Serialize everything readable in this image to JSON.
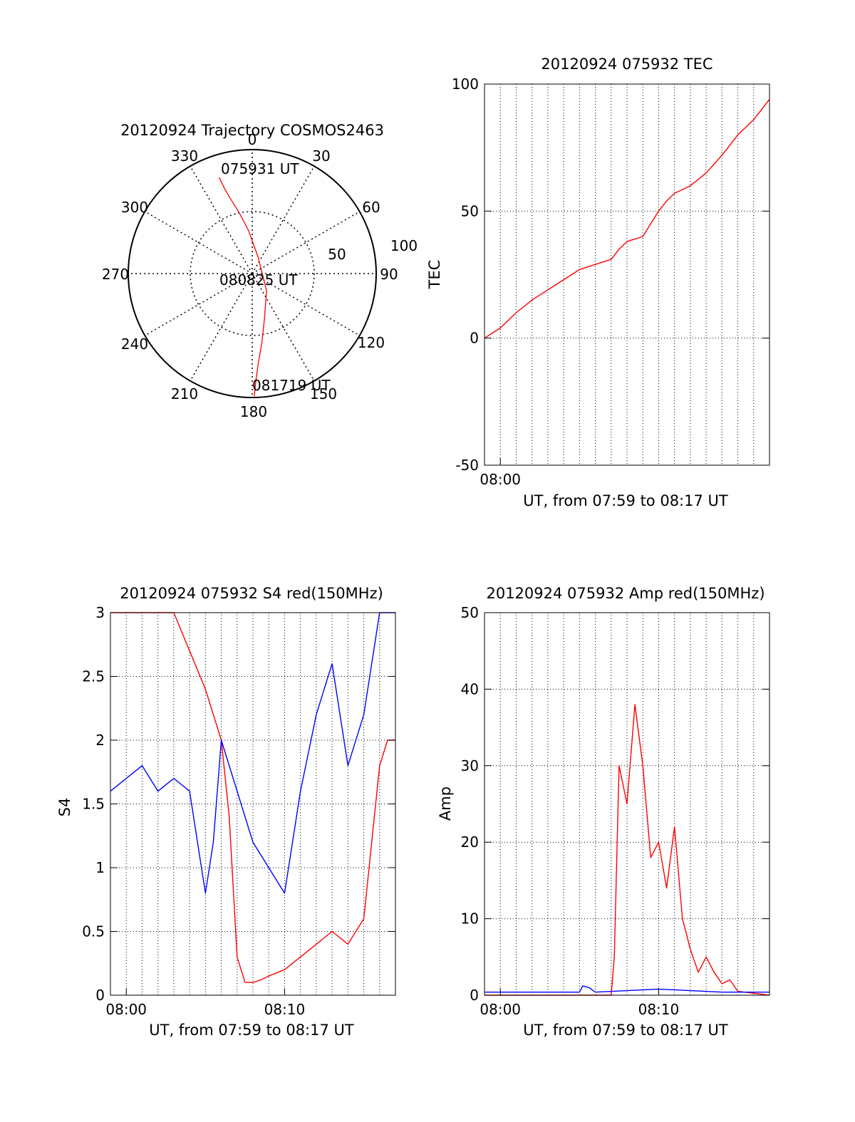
{
  "colors": {
    "red": "#ff0000",
    "blue": "#0000ff",
    "axis": "#000000",
    "grid": "#000000"
  },
  "chart_data": [
    {
      "type": "polar",
      "title": "20120924 Trajectory COSMOS2463",
      "angle_ticks": [
        "0",
        "30",
        "60",
        "90",
        "120",
        "150",
        "180",
        "210",
        "240",
        "270",
        "300",
        "330"
      ],
      "radial_ticks": [
        "50",
        "100"
      ],
      "annotations": [
        "075931 UT",
        "080825 UT",
        "081719 UT"
      ],
      "series": [
        {
          "color": "red",
          "azimuth_deg": [
            341,
            342,
            344,
            348,
            355,
            20,
            140,
            165,
            172,
            176,
            178,
            179
          ],
          "zenith_deg": [
            82,
            72,
            62,
            50,
            35,
            14,
            18,
            38,
            56,
            72,
            86,
            99
          ]
        }
      ]
    },
    {
      "type": "line",
      "title": "20120924 075932 TEC",
      "xlabel": "UT, from 07:59 to 08:17 UT",
      "ylabel": "TEC",
      "x_tick_labels": [
        "08:00"
      ],
      "y_tick_labels": [
        "-50",
        "0",
        "50",
        "100"
      ],
      "ylim": [
        -50,
        100
      ],
      "xlim_min": [
        0,
        18
      ],
      "grid": true,
      "series": [
        {
          "color": "red",
          "x_min": [
            0,
            0.5,
            1,
            2,
            3,
            4,
            5,
            6,
            7,
            8,
            8.5,
            9,
            10,
            11,
            11.5,
            12,
            13,
            14,
            15,
            16,
            17,
            18
          ],
          "y": [
            0,
            2,
            4,
            10,
            15,
            19,
            23,
            27,
            29,
            31,
            35,
            38,
            40,
            50,
            54,
            57,
            60,
            65,
            72,
            80,
            86,
            94
          ]
        }
      ]
    },
    {
      "type": "line",
      "title": "20120924 075932 S4 red(150MHz)",
      "xlabel": "UT, from 07:59 to 08:17 UT",
      "ylabel": "S4",
      "x_tick_labels": [
        "08:00",
        "08:10"
      ],
      "y_tick_labels": [
        "0",
        "0.5",
        "1",
        "1.5",
        "2",
        "2.5",
        "3"
      ],
      "ylim": [
        0,
        3
      ],
      "xlim_min": [
        0,
        18
      ],
      "grid": true,
      "series": [
        {
          "color": "red",
          "x_min": [
            0,
            1,
            2,
            3,
            4,
            5,
            6,
            7,
            7.5,
            8,
            8.5,
            9,
            9.5,
            10,
            11,
            12,
            13,
            14,
            15,
            16,
            17,
            17.5,
            18
          ],
          "y": [
            3,
            3,
            3,
            3,
            3,
            2.7,
            2.4,
            2.0,
            1.4,
            0.3,
            0.1,
            0.1,
            0.12,
            0.15,
            0.2,
            0.3,
            0.4,
            0.5,
            0.4,
            0.6,
            1.8,
            2.0,
            2.0
          ]
        },
        {
          "color": "blue",
          "x_min": [
            0,
            1,
            2,
            3,
            4,
            5,
            6,
            6.5,
            7,
            8,
            9,
            10,
            11,
            12,
            13,
            14,
            15,
            16,
            17,
            18
          ],
          "y": [
            1.6,
            1.7,
            1.8,
            1.6,
            1.7,
            1.6,
            0.8,
            1.2,
            2.0,
            1.6,
            1.2,
            1.0,
            0.8,
            1.6,
            2.2,
            2.6,
            1.8,
            2.2,
            3.0,
            3.0
          ]
        }
      ]
    },
    {
      "type": "line",
      "title": "20120924 075932 Amp red(150MHz)",
      "xlabel": "UT, from 07:59 to 08:17 UT",
      "ylabel": "Amp",
      "x_tick_labels": [
        "08:00",
        "08:10"
      ],
      "y_tick_labels": [
        "0",
        "10",
        "20",
        "30",
        "40",
        "50"
      ],
      "ylim": [
        0,
        50
      ],
      "xlim_min": [
        0,
        18
      ],
      "grid": true,
      "series": [
        {
          "color": "red",
          "x_min": [
            0,
            8,
            8.2,
            8.5,
            9,
            9.5,
            10,
            10.5,
            11,
            11.5,
            12,
            12.5,
            13,
            13.5,
            14,
            14.5,
            15,
            15.5,
            16,
            18
          ],
          "y": [
            0,
            0,
            5,
            30,
            25,
            38,
            30,
            18,
            20,
            14,
            22,
            10,
            6,
            3,
            5,
            3,
            1.5,
            2,
            0.5,
            0
          ]
        },
        {
          "color": "blue",
          "x_min": [
            0,
            4,
            6,
            6.2,
            6.6,
            7,
            9,
            11,
            13,
            15,
            18
          ],
          "y": [
            0.4,
            0.4,
            0.4,
            1.2,
            1.0,
            0.4,
            0.6,
            0.8,
            0.6,
            0.4,
            0.4
          ]
        }
      ]
    }
  ]
}
